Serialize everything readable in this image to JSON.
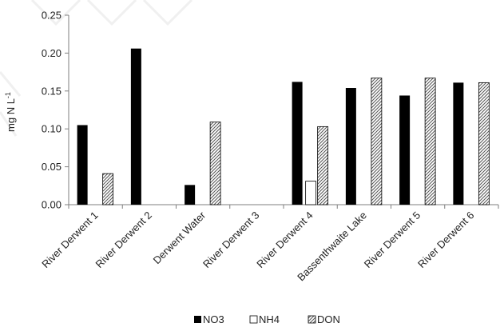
{
  "chart_data": {
    "type": "bar",
    "categories": [
      "River Derwent 1",
      "River Derwent 2",
      "Derwent Water",
      "River Derwent 3",
      "River Derwent 4",
      "Bassenthwaite Lake",
      "River Derwent 5",
      "River Derwent 6"
    ],
    "series": [
      {
        "name": "NO3",
        "values": [
          0.105,
          0.206,
          0.026,
          null,
          0.162,
          0.154,
          0.144,
          0.161
        ],
        "color": "#000000",
        "pattern": "solid"
      },
      {
        "name": "NH4",
        "values": [
          null,
          null,
          null,
          null,
          0.031,
          null,
          null,
          null
        ],
        "color": "#ffffff",
        "pattern": "outline"
      },
      {
        "name": "DON",
        "values": [
          0.041,
          null,
          0.109,
          null,
          0.103,
          0.167,
          0.167,
          0.161
        ],
        "color": "#bdbdbd",
        "pattern": "hatched"
      }
    ],
    "ylabel": "mg N L",
    "ylabel_superscript": "-1",
    "ylim": [
      0,
      0.25
    ],
    "yticks": [
      "0.00",
      "0.05",
      "0.10",
      "0.15",
      "0.20",
      "0.25"
    ],
    "legend_position": "bottom",
    "grid": false,
    "axis_color": "#7f7f7f"
  }
}
